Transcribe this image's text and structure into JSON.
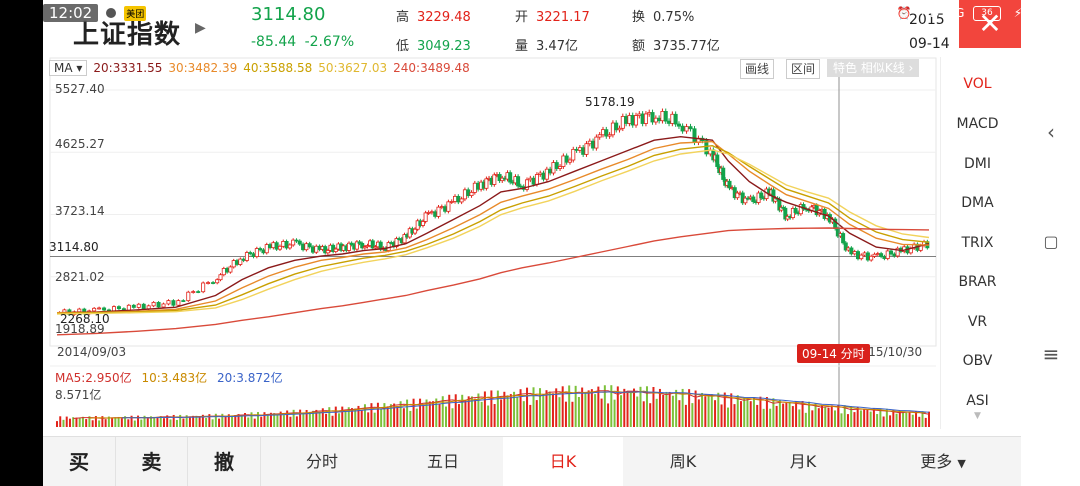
{
  "status": {
    "time": "12:02",
    "badge": "美团",
    "network": "4G",
    "battery": "36",
    "dots": "· · ·"
  },
  "header": {
    "title": "上证指数",
    "price": "3114.80",
    "change": "-85.44",
    "change_pct": "-2.67%",
    "high_label": "高",
    "high": "3229.48",
    "low_label": "低",
    "low": "3049.23",
    "open_label": "开",
    "open": "3221.17",
    "volume_label": "量",
    "volume": "3.47亿",
    "turnover_label": "换",
    "turnover": "0.75%",
    "amount_label": "额",
    "amount": "3735.77亿",
    "date_year": "2015",
    "date_day": "09-14"
  },
  "chart_toolbar": {
    "ma_select": "MA",
    "ma20": "20:3331.55",
    "ma30": "30:3482.39",
    "ma40": "40:3588.58",
    "ma50": "50:3627.03",
    "ma240": "240:3489.48",
    "draw_label": "画线",
    "range_label": "区间",
    "feature_label": "特色",
    "similar_label": "相似K线"
  },
  "colors": {
    "up": "#e2231a",
    "down": "#13a34b",
    "ma20": "#8b1a1a",
    "ma30": "#e88a2a",
    "ma40": "#c9a000",
    "ma50": "#f2d35c",
    "ma240": "#d94a3a",
    "vol_ma5": "#d0312d",
    "vol_ma10": "#c98a00",
    "vol_ma20": "#3a63c8"
  },
  "chart_data": {
    "type": "line",
    "ytick_labels": [
      "5527.40",
      "4625.27",
      "3723.14",
      "2821.02",
      "1918.89"
    ],
    "current_value": "3114.80",
    "low_mark": "2268.10",
    "high_mark": "5178.19",
    "start_date": "2014/09/03",
    "end_date": "2015/10/30",
    "cursor_label": "09-14 分时",
    "ylim": [
      1918.89,
      5527.4
    ],
    "x": [
      0,
      15,
      30,
      45,
      60,
      70,
      80,
      90,
      100,
      108,
      116,
      124,
      132,
      140,
      150,
      160,
      168,
      176,
      186,
      196,
      206,
      216,
      226,
      236,
      248,
      254,
      262,
      270,
      276,
      284,
      292,
      300,
      310,
      320,
      330
    ],
    "series": [
      {
        "values": [
          2300,
          2330,
          2380,
          2450,
          2800,
          3100,
          3250,
          3300,
          3200,
          3250,
          3300,
          3250,
          3400,
          3700,
          3900,
          4150,
          4300,
          4150,
          4350,
          4600,
          4850,
          5100,
          5160,
          5050,
          4600,
          4100,
          3900,
          4050,
          3700,
          3850,
          3700,
          3150,
          3100,
          3200,
          3300
        ]
      },
      {
        "values": [
          2300,
          2310,
          2340,
          2380,
          2550,
          2780,
          2950,
          3060,
          3120,
          3150,
          3200,
          3230,
          3300,
          3450,
          3650,
          3850,
          4050,
          4100,
          4200,
          4350,
          4500,
          4650,
          4800,
          4850,
          4800,
          4500,
          4200,
          4000,
          3900,
          3800,
          3700,
          3450,
          3250,
          3200,
          3300
        ]
      },
      {
        "values": [
          2300,
          2305,
          2320,
          2350,
          2470,
          2660,
          2830,
          2960,
          3060,
          3100,
          3150,
          3180,
          3240,
          3360,
          3530,
          3720,
          3900,
          3990,
          4090,
          4230,
          4380,
          4520,
          4680,
          4760,
          4780,
          4600,
          4350,
          4150,
          4010,
          3910,
          3810,
          3580,
          3380,
          3290,
          3280
        ]
      },
      {
        "values": [
          2290,
          2300,
          2310,
          2330,
          2410,
          2560,
          2720,
          2860,
          2970,
          3030,
          3090,
          3130,
          3190,
          3290,
          3440,
          3620,
          3790,
          3890,
          3990,
          4130,
          4280,
          4420,
          4580,
          4670,
          4720,
          4620,
          4420,
          4230,
          4090,
          3990,
          3890,
          3670,
          3470,
          3360,
          3320
        ]
      },
      {
        "values": [
          2280,
          2290,
          2300,
          2315,
          2370,
          2490,
          2640,
          2780,
          2900,
          2970,
          3030,
          3080,
          3140,
          3240,
          3380,
          3550,
          3720,
          3820,
          3920,
          4060,
          4210,
          4350,
          4500,
          4600,
          4660,
          4600,
          4450,
          4280,
          4150,
          4050,
          3960,
          3760,
          3560,
          3440,
          3390
        ]
      },
      {
        "values": [
          1980,
          2000,
          2030,
          2070,
          2130,
          2190,
          2240,
          2300,
          2360,
          2400,
          2450,
          2500,
          2550,
          2620,
          2700,
          2790,
          2880,
          2950,
          3020,
          3100,
          3180,
          3260,
          3340,
          3400,
          3460,
          3490,
          3505,
          3515,
          3520,
          3525,
          3528,
          3520,
          3510,
          3505,
          3500
        ]
      }
    ]
  },
  "volume_panel": {
    "ma5_label": "MA5:2.950亿",
    "ma10_label": "10:3.483亿",
    "ma20_label": "20:3.872亿",
    "max_label": "8.571亿"
  },
  "indicators": [
    "VOL",
    "MACD",
    "DMI",
    "DMA",
    "TRIX",
    "BRAR",
    "VR",
    "OBV",
    "ASI"
  ],
  "bottom_bar": {
    "buy": "买",
    "sell": "卖",
    "cancel": "撤",
    "tabs": [
      "分时",
      "五日",
      "日K",
      "周K",
      "月K",
      "更多"
    ]
  }
}
